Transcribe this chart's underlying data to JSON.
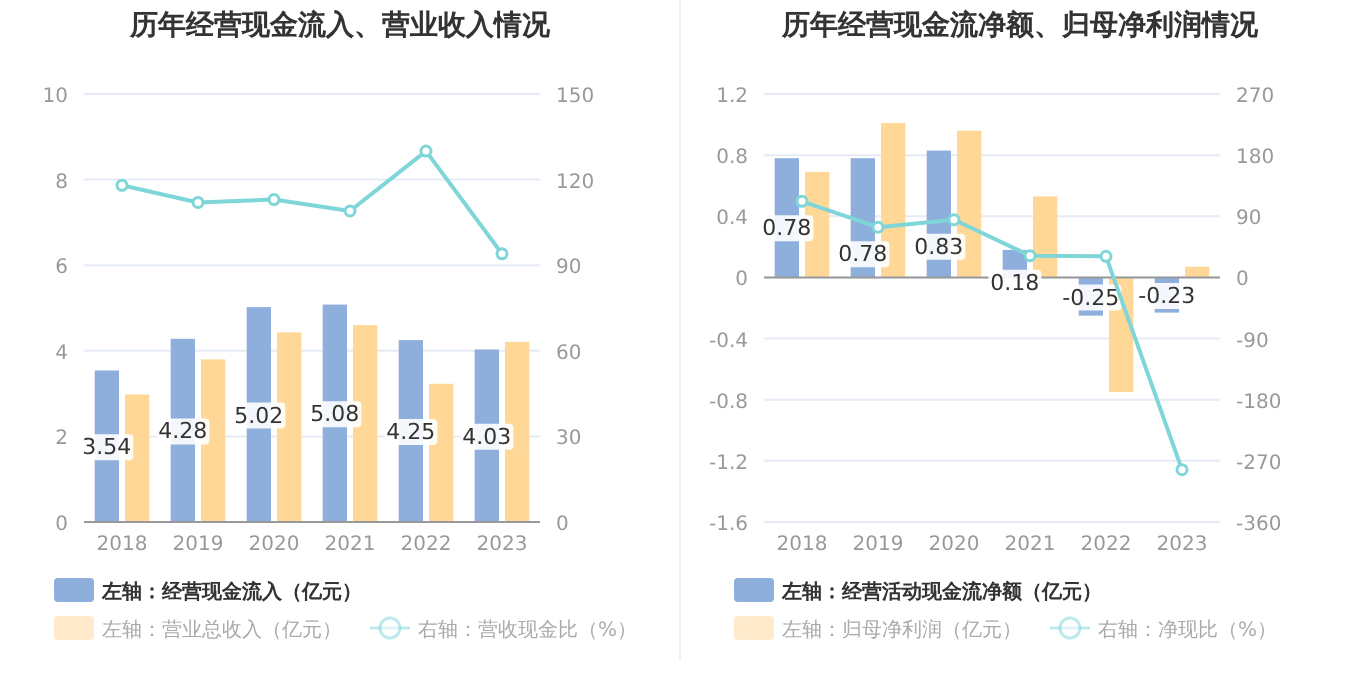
{
  "chart_data": [
    {
      "type": "bar",
      "title": "历年经营现金流入、营业收入情况",
      "categories": [
        "2018",
        "2019",
        "2020",
        "2021",
        "2022",
        "2023"
      ],
      "series": [
        {
          "name": "左轴：经营现金流入（亿元）",
          "color": "#8eaedb",
          "values": [
            3.54,
            4.28,
            5.02,
            5.08,
            4.25,
            4.03
          ],
          "value_labels": [
            "3.54",
            "4.28",
            "5.02",
            "5.08",
            "4.25",
            "4.03"
          ]
        },
        {
          "name": "左轴：营业总收入（亿元）",
          "color": "#ffd898",
          "values": [
            2.98,
            3.8,
            4.43,
            4.6,
            3.23,
            4.21
          ]
        },
        {
          "name": "右轴：营收现金比（%）",
          "type": "line",
          "axis": "y2",
          "marker": "circle",
          "color": "#7fd6d9",
          "values": [
            118,
            112,
            113,
            109,
            130,
            94
          ]
        }
      ],
      "ylim": [
        0,
        10
      ],
      "yticks": [
        0,
        2,
        4,
        6,
        8,
        10
      ],
      "y2lim": [
        0,
        150
      ],
      "y2ticks": [
        0,
        30,
        60,
        90,
        120,
        150
      ],
      "grid": "y",
      "legend": "bottom"
    },
    {
      "type": "bar",
      "title": "历年经营现金流净额、归母净利润情况",
      "categories": [
        "2018",
        "2019",
        "2020",
        "2021",
        "2022",
        "2023"
      ],
      "series": [
        {
          "name": "左轴：经营活动现金流净额（亿元）",
          "color": "#8eaedb",
          "values": [
            0.78,
            0.78,
            0.83,
            0.18,
            -0.25,
            -0.23
          ],
          "value_labels": [
            "0.78",
            "0.78",
            "0.83",
            "0.18",
            "-0.25",
            "-0.23"
          ]
        },
        {
          "name": "左轴：归母净利润（亿元）",
          "color": "#ffd898",
          "values": [
            0.69,
            1.01,
            0.96,
            0.53,
            -0.75,
            0.07
          ]
        },
        {
          "name": "右轴：净现比（%）",
          "type": "line",
          "axis": "y2",
          "marker": "circle",
          "color": "#7fd6d9",
          "values": [
            112,
            74,
            85,
            32,
            31,
            -283
          ]
        }
      ],
      "ylim": [
        -1.6,
        1.2
      ],
      "yticks": [
        -1.6,
        -1.2,
        -0.8,
        -0.4,
        0,
        0.4,
        0.8,
        1.2
      ],
      "y2lim": [
        -360,
        270
      ],
      "y2ticks": [
        -360,
        -270,
        -180,
        -90,
        0,
        90,
        180,
        270
      ],
      "grid": "y",
      "legend": "bottom"
    }
  ]
}
